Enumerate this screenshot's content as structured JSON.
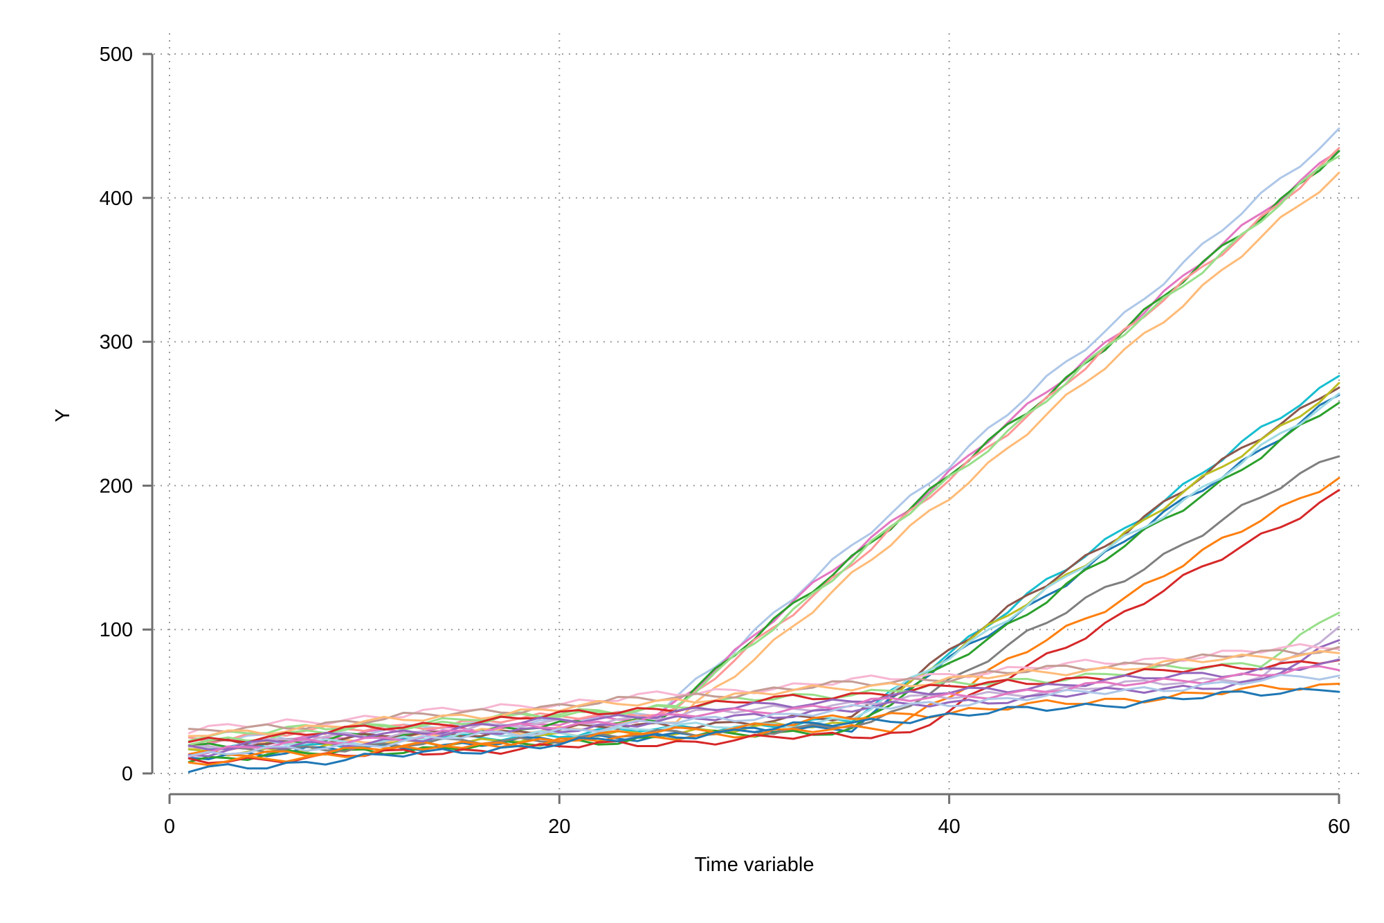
{
  "chart_data": {
    "type": "line",
    "title": "",
    "xlabel": "Time  variable",
    "ylabel": "Y",
    "xlim": [
      0,
      60
    ],
    "ylim": [
      0,
      500
    ],
    "x_ticks": [
      0,
      20,
      40,
      60
    ],
    "y_ticks": [
      0,
      100,
      200,
      300,
      400,
      500
    ],
    "x_tick_labels": [
      "0",
      "20",
      "40",
      "60"
    ],
    "y_tick_labels": [
      "0",
      "100",
      "200",
      "300",
      "400",
      "500"
    ],
    "grid": true,
    "legend": "none",
    "x_start": 1,
    "x_end": 60,
    "series": [
      {
        "color": "#aec7e8",
        "start": 22,
        "slope": 0.8,
        "break": 25,
        "post_slope": 11.6
      },
      {
        "color": "#e377c2",
        "start": 20,
        "slope": 0.8,
        "break": 25,
        "post_slope": 11.3
      },
      {
        "color": "#2ca02c",
        "start": 18,
        "slope": 0.8,
        "break": 25,
        "post_slope": 11.3
      },
      {
        "color": "#ff9896",
        "start": 24,
        "slope": 0.8,
        "break": 26,
        "post_slope": 11.4
      },
      {
        "color": "#98df8a",
        "start": 26,
        "slope": 0.8,
        "break": 26,
        "post_slope": 11.3
      },
      {
        "color": "#ffbb78",
        "start": 16,
        "slope": 0.8,
        "break": 26,
        "post_slope": 11.2
      },
      {
        "color": "#17becf",
        "start": 16,
        "slope": 0.6,
        "break": 35,
        "post_slope": 9.6
      },
      {
        "color": "#8c564b",
        "start": 20,
        "slope": 0.55,
        "break": 35,
        "post_slope": 9.3
      },
      {
        "color": "#bcbd22",
        "start": 14,
        "slope": 0.6,
        "break": 35,
        "post_slope": 9.4
      },
      {
        "color": "#1f77b4",
        "start": 12,
        "slope": 0.6,
        "break": 35,
        "post_slope": 9.2
      },
      {
        "color": "#2ca02c",
        "start": 10,
        "slope": 0.6,
        "break": 35,
        "post_slope": 9.1
      },
      {
        "color": "#9edae5",
        "start": 18,
        "slope": 0.55,
        "break": 35,
        "post_slope": 9.0
      },
      {
        "color": "#7f7f7f",
        "start": 14,
        "slope": 0.55,
        "break": 36,
        "post_slope": 7.9
      },
      {
        "color": "#ff7f0e",
        "start": 12,
        "slope": 0.55,
        "break": 37,
        "post_slope": 7.6
      },
      {
        "color": "#d62728",
        "start": 8,
        "slope": 0.55,
        "break": 38,
        "post_slope": 7.6
      },
      {
        "color": "#98df8a",
        "start": 22,
        "slope": 1.0,
        "break": 56,
        "post_slope": 9.0
      },
      {
        "color": "#c5b0d5",
        "start": 18,
        "slope": 0.9,
        "break": 56,
        "post_slope": 8.0
      },
      {
        "color": "#9467bd",
        "start": 14,
        "slope": 0.9,
        "break": 56,
        "post_slope": 7.0
      },
      {
        "color": "#f7b6d2",
        "start": 30,
        "slope": 1.0
      },
      {
        "color": "#c49c94",
        "start": 28,
        "slope": 1.0
      },
      {
        "color": "#ffbb78",
        "start": 26,
        "slope": 1.0
      },
      {
        "color": "#d62728",
        "start": 22,
        "slope": 0.97
      },
      {
        "color": "#9467bd",
        "start": 18,
        "slope": 0.98
      },
      {
        "color": "#e377c2",
        "start": 15,
        "slope": 0.98
      },
      {
        "color": "#aec7e8",
        "start": 12,
        "slope": 0.95
      },
      {
        "color": "#ff7f0e",
        "start": 6,
        "slope": 0.95
      },
      {
        "color": "#1f77b4",
        "start": 2,
        "slope": 0.98
      }
    ]
  }
}
